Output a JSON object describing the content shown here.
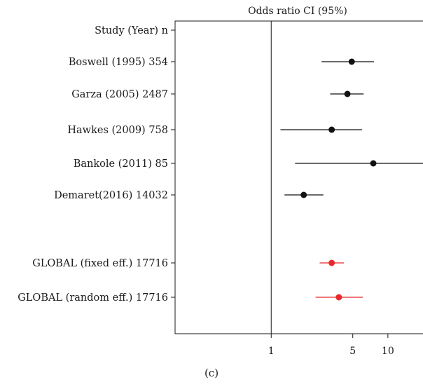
{
  "chart_data": {
    "type": "forest",
    "title": "Odds ratio CI (95%)",
    "caption": "(c)",
    "column_header": "Study (Year) n",
    "xscale": "log",
    "xlim": [
      0.15,
      20
    ],
    "xticks": [
      {
        "value": 1,
        "label": "1"
      },
      {
        "value": 5,
        "label": "5"
      },
      {
        "value": 10,
        "label": "10"
      }
    ],
    "reference_line": 1,
    "grid": false,
    "colors": {
      "study": "#111111",
      "global": "#e8292b",
      "axis": "#1a1a1a"
    },
    "studies": [
      {
        "label": "Boswell (1995) 354",
        "or": 4.9,
        "lower": 2.7,
        "upper": 7.6,
        "kind": "study"
      },
      {
        "label": "Garza (2005) 2487",
        "or": 4.5,
        "lower": 3.2,
        "upper": 6.2,
        "kind": "study"
      },
      {
        "label": "Hawkes (2009) 758",
        "or": 3.3,
        "lower": 1.2,
        "upper": 6.0,
        "kind": "study"
      },
      {
        "label": "Bankole (2011) 85",
        "or": 7.5,
        "lower": 1.6,
        "upper": 20,
        "kind": "study",
        "upper_truncated": true
      },
      {
        "label": "Demaret(2016) 14032",
        "or": 1.9,
        "lower": 1.3,
        "upper": 2.8,
        "kind": "study"
      },
      {
        "label": "GLOBAL (fixed eff.) 17716",
        "or": 3.3,
        "lower": 2.6,
        "upper": 4.2,
        "kind": "global"
      },
      {
        "label": "GLOBAL (random eff.) 17716",
        "or": 3.8,
        "lower": 2.4,
        "upper": 6.1,
        "kind": "global"
      }
    ]
  }
}
